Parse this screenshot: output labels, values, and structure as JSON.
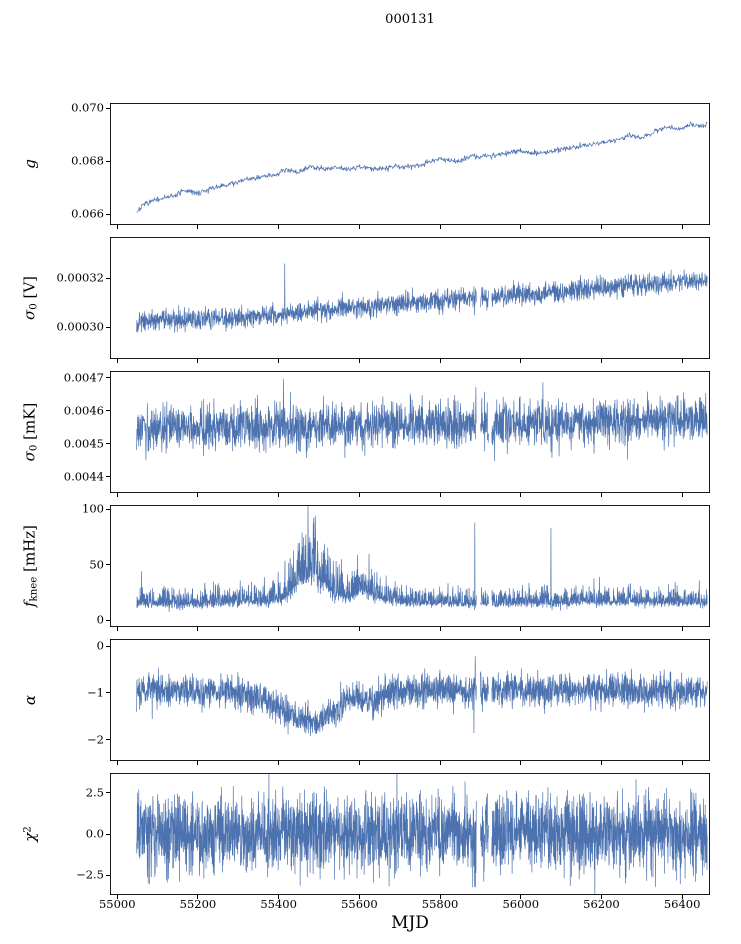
{
  "figure": {
    "title": "000131",
    "xlabel": "MJD",
    "line_color": "#4c72b0",
    "background": "#ffffff",
    "x_axis": {
      "range": [
        54982,
        56469
      ],
      "data_range": [
        55048,
        56462
      ],
      "ticks": [
        {
          "v": 55000,
          "label": "55000"
        },
        {
          "v": 55200,
          "label": "55200"
        },
        {
          "v": 55400,
          "label": "55400"
        },
        {
          "v": 55600,
          "label": "55600"
        },
        {
          "v": 55800,
          "label": "55800"
        },
        {
          "v": 56000,
          "label": "56000"
        },
        {
          "v": 56200,
          "label": "56200"
        },
        {
          "v": 56400,
          "label": "56400"
        }
      ]
    }
  },
  "chart_data": [
    {
      "type": "line",
      "name": "g",
      "ylabel_parts": [
        {
          "t": "g",
          "k": "it"
        }
      ],
      "ylim": [
        0.0656,
        0.0702
      ],
      "yticks": [
        {
          "v": 0.066,
          "label": "0.066"
        },
        {
          "v": 0.068,
          "label": "0.068"
        },
        {
          "v": 0.07,
          "label": "0.070"
        }
      ],
      "seed": 7,
      "n": 1100,
      "mode": "line",
      "noise": 5e-05,
      "trend": [
        [
          55048,
          0.0661
        ],
        [
          55070,
          0.0664
        ],
        [
          55110,
          0.0666
        ],
        [
          55140,
          0.0667
        ],
        [
          55170,
          0.0669
        ],
        [
          55200,
          0.0668
        ],
        [
          55240,
          0.067
        ],
        [
          55270,
          0.0671
        ],
        [
          55310,
          0.0673
        ],
        [
          55350,
          0.0674
        ],
        [
          55390,
          0.0675
        ],
        [
          55420,
          0.0677
        ],
        [
          55450,
          0.0676
        ],
        [
          55480,
          0.0678
        ],
        [
          55510,
          0.0677
        ],
        [
          55540,
          0.0678
        ],
        [
          55570,
          0.0677
        ],
        [
          55600,
          0.0678
        ],
        [
          55640,
          0.0677
        ],
        [
          55680,
          0.0678
        ],
        [
          55720,
          0.0678
        ],
        [
          55760,
          0.0679
        ],
        [
          55800,
          0.0681
        ],
        [
          55840,
          0.068
        ],
        [
          55880,
          0.0682
        ],
        [
          55920,
          0.0682
        ],
        [
          55960,
          0.0683
        ],
        [
          56000,
          0.0684
        ],
        [
          56040,
          0.0683
        ],
        [
          56080,
          0.0684
        ],
        [
          56120,
          0.0685
        ],
        [
          56160,
          0.0686
        ],
        [
          56200,
          0.0687
        ],
        [
          56240,
          0.0688
        ],
        [
          56270,
          0.069
        ],
        [
          56300,
          0.0689
        ],
        [
          56330,
          0.0691
        ],
        [
          56360,
          0.0693
        ],
        [
          56390,
          0.0692
        ],
        [
          56420,
          0.0694
        ],
        [
          56450,
          0.0693
        ],
        [
          56462,
          0.0694
        ]
      ],
      "spikes": [],
      "gaps": []
    },
    {
      "type": "line",
      "name": "sigma0-v",
      "ylabel_parts": [
        {
          "t": "σ",
          "k": "it"
        },
        {
          "t": "0",
          "k": "sub"
        },
        {
          "t": " [V]",
          "k": "rm"
        }
      ],
      "ylim": [
        0.000287,
        0.000337
      ],
      "yticks": [
        {
          "v": 0.0003,
          "label": "0.00030"
        },
        {
          "v": 0.00032,
          "label": "0.00032"
        }
      ],
      "seed": 13,
      "n": 2400,
      "mode": "line",
      "noise": 2.1e-06,
      "trend": [
        [
          55048,
          0.000302
        ],
        [
          55100,
          0.000303
        ],
        [
          55200,
          0.0003035
        ],
        [
          55300,
          0.000304
        ],
        [
          55400,
          0.000305
        ],
        [
          55500,
          0.000307
        ],
        [
          55600,
          0.000308
        ],
        [
          55700,
          0.0003095
        ],
        [
          55800,
          0.000311
        ],
        [
          55900,
          0.000312
        ],
        [
          56000,
          0.000313
        ],
        [
          56100,
          0.0003145
        ],
        [
          56200,
          0.000316
        ],
        [
          56300,
          0.0003175
        ],
        [
          56400,
          0.000319
        ],
        [
          56462,
          0.0003195
        ]
      ],
      "spikes": [
        {
          "x": 55048,
          "v": 0.000298
        },
        {
          "x": 55415,
          "v": 0.000326
        },
        {
          "x": 55885,
          "v": 0.000305
        }
      ],
      "gaps": [
        [
          55890,
          55900
        ],
        [
          55920,
          55928
        ]
      ]
    },
    {
      "type": "line",
      "name": "sigma0-mk",
      "ylabel_parts": [
        {
          "t": "σ",
          "k": "it"
        },
        {
          "t": "0",
          "k": "sub"
        },
        {
          "t": " [mK]",
          "k": "rm"
        }
      ],
      "ylim": [
        0.00435,
        0.00472
      ],
      "yticks": [
        {
          "v": 0.0044,
          "label": "0.0044"
        },
        {
          "v": 0.0045,
          "label": "0.0045"
        },
        {
          "v": 0.0046,
          "label": "0.0046"
        },
        {
          "v": 0.0047,
          "label": "0.0047"
        }
      ],
      "seed": 21,
      "n": 2400,
      "mode": "line",
      "noise": 3.4e-05,
      "trend": [
        [
          55048,
          0.004545
        ],
        [
          55200,
          0.004548
        ],
        [
          55350,
          0.004552
        ],
        [
          55450,
          0.004558
        ],
        [
          55550,
          0.004553
        ],
        [
          55700,
          0.004557
        ],
        [
          55850,
          0.004559
        ],
        [
          56000,
          0.004562
        ],
        [
          56150,
          0.004566
        ],
        [
          56300,
          0.00457
        ],
        [
          56462,
          0.004573
        ]
      ],
      "spikes": [
        {
          "x": 55048,
          "v": 0.00448
        },
        {
          "x": 55412,
          "v": 0.004695
        },
        {
          "x": 55935,
          "v": 0.004448
        },
        {
          "x": 56055,
          "v": 0.004685
        },
        {
          "x": 56095,
          "v": 0.004462
        }
      ],
      "gaps": [
        [
          55890,
          55900
        ],
        [
          55920,
          55928
        ]
      ]
    },
    {
      "type": "line",
      "name": "fknee",
      "ylabel_parts": [
        {
          "t": "f",
          "k": "it"
        },
        {
          "t": "knee",
          "k": "sub"
        },
        {
          "t": " [mHz]",
          "k": "rm"
        }
      ],
      "ylim": [
        -6,
        104
      ],
      "yticks": [
        {
          "v": 0,
          "label": "0"
        },
        {
          "v": 50,
          "label": "50"
        },
        {
          "v": 100,
          "label": "100"
        }
      ],
      "seed": 29,
      "n": 2600,
      "mode": "asym",
      "noise": 4,
      "trend": [
        [
          55048,
          16
        ],
        [
          55150,
          15
        ],
        [
          55250,
          16
        ],
        [
          55330,
          18
        ],
        [
          55370,
          17
        ],
        [
          55410,
          21
        ],
        [
          55435,
          30
        ],
        [
          55455,
          40
        ],
        [
          55475,
          46
        ],
        [
          55495,
          44
        ],
        [
          55515,
          36
        ],
        [
          55540,
          26
        ],
        [
          55565,
          22
        ],
        [
          55585,
          24
        ],
        [
          55605,
          29
        ],
        [
          55625,
          27
        ],
        [
          55645,
          23
        ],
        [
          55670,
          19
        ],
        [
          55710,
          17
        ],
        [
          55800,
          16
        ],
        [
          55900,
          16
        ],
        [
          56000,
          16
        ],
        [
          56100,
          16
        ],
        [
          56160,
          18
        ],
        [
          56220,
          17
        ],
        [
          56280,
          18
        ],
        [
          56340,
          17
        ],
        [
          56400,
          17
        ],
        [
          56462,
          16
        ]
      ],
      "spread": [
        [
          55048,
          4
        ],
        [
          55380,
          4.5
        ],
        [
          55430,
          10
        ],
        [
          55460,
          13
        ],
        [
          55500,
          12
        ],
        [
          55530,
          9
        ],
        [
          55560,
          6
        ],
        [
          55590,
          7
        ],
        [
          55620,
          7
        ],
        [
          55660,
          5
        ],
        [
          55700,
          4
        ],
        [
          56462,
          4
        ]
      ],
      "spikes": [
        {
          "x": 55060,
          "v": 44
        },
        {
          "x": 55886,
          "v": 88
        },
        {
          "x": 56075,
          "v": 83
        }
      ],
      "gaps": [
        [
          55890,
          55900
        ],
        [
          55920,
          55928
        ]
      ]
    },
    {
      "type": "line",
      "name": "alpha",
      "ylabel_parts": [
        {
          "t": "α",
          "k": "it"
        }
      ],
      "ylim": [
        -2.45,
        0.15
      ],
      "yticks": [
        {
          "v": -2,
          "label": "−2"
        },
        {
          "v": -1,
          "label": "−1"
        },
        {
          "v": 0,
          "label": "0"
        }
      ],
      "seed": 37,
      "n": 2600,
      "mode": "line",
      "noise": 0.17,
      "trend": [
        [
          55048,
          -0.95
        ],
        [
          55250,
          -0.95
        ],
        [
          55300,
          -1.0
        ],
        [
          55340,
          -1.1
        ],
        [
          55380,
          -1.2
        ],
        [
          55410,
          -1.35
        ],
        [
          55440,
          -1.5
        ],
        [
          55465,
          -1.6
        ],
        [
          55495,
          -1.62
        ],
        [
          55525,
          -1.5
        ],
        [
          55550,
          -1.3
        ],
        [
          55575,
          -1.15
        ],
        [
          55600,
          -1.1
        ],
        [
          55625,
          -1.2
        ],
        [
          55650,
          -1.1
        ],
        [
          55675,
          -1.0
        ],
        [
          55700,
          -0.95
        ],
        [
          56462,
          -0.95
        ]
      ],
      "spikes": [
        {
          "x": 55048,
          "v": -1.4
        },
        {
          "x": 55884,
          "v": -1.85
        },
        {
          "x": 55887,
          "v": -0.22
        }
      ],
      "gaps": [
        [
          55890,
          55900
        ],
        [
          55920,
          55928
        ]
      ]
    },
    {
      "type": "line",
      "name": "chi2",
      "ylabel_parts": [
        {
          "t": "χ",
          "k": "it"
        },
        {
          "t": "2",
          "k": "sup"
        }
      ],
      "ylim": [
        -3.7,
        3.7
      ],
      "yticks": [
        {
          "v": -2.5,
          "label": "−2.5"
        },
        {
          "v": 0,
          "label": "0.0"
        },
        {
          "v": 2.5,
          "label": "2.5"
        }
      ],
      "seed": 43,
      "n": 3200,
      "mode": "line",
      "noise": 1.15,
      "trend": [
        [
          55048,
          0
        ],
        [
          56462,
          0
        ]
      ],
      "spikes": [],
      "gaps": [
        [
          55890,
          55900
        ],
        [
          55920,
          55928
        ]
      ]
    }
  ]
}
